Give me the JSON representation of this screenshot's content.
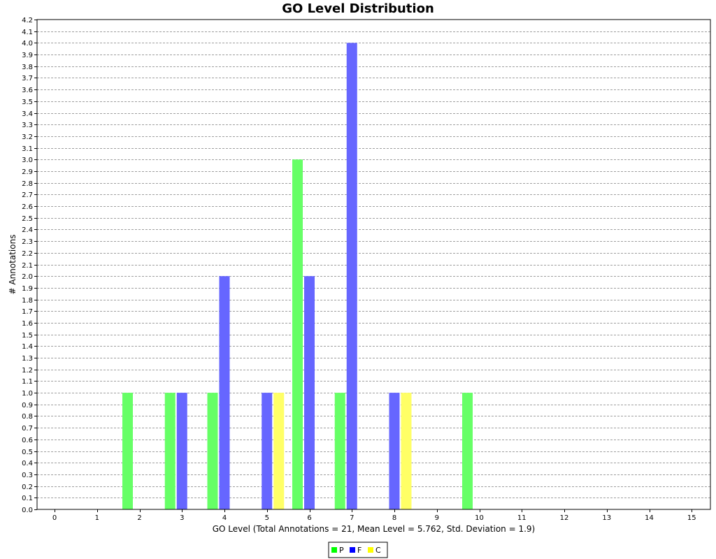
{
  "chart_data": {
    "type": "bar",
    "title": "GO Level Distribution",
    "xlabel": "GO Level  (Total Annotations = 21, Mean Level = 5.762, Std. Deviation = 1.9)",
    "ylabel": "# Annotations",
    "categories": [
      "0",
      "1",
      "2",
      "3",
      "4",
      "5",
      "6",
      "7",
      "8",
      "9",
      "10",
      "11",
      "12",
      "13",
      "14",
      "15"
    ],
    "ylim": [
      0,
      4.2
    ],
    "ytick_step": 0.1,
    "grid": true,
    "legend_position": "bottom-center",
    "series": [
      {
        "name": "P",
        "color": "#66ff66",
        "legend_color": "#00ff00",
        "values": [
          0,
          0,
          1,
          1,
          1,
          0,
          3,
          1,
          0,
          0,
          1,
          0,
          0,
          0,
          0,
          0
        ]
      },
      {
        "name": "F",
        "color": "#6666ff",
        "legend_color": "#0000ff",
        "values": [
          0,
          0,
          0,
          1,
          2,
          1,
          2,
          4,
          1,
          0,
          0,
          0,
          0,
          0,
          0,
          0
        ]
      },
      {
        "name": "C",
        "color": "#ffff66",
        "legend_color": "#ffff00",
        "values": [
          0,
          0,
          0,
          0,
          0,
          1,
          0,
          0,
          1,
          0,
          0,
          0,
          0,
          0,
          0,
          0
        ]
      }
    ]
  }
}
